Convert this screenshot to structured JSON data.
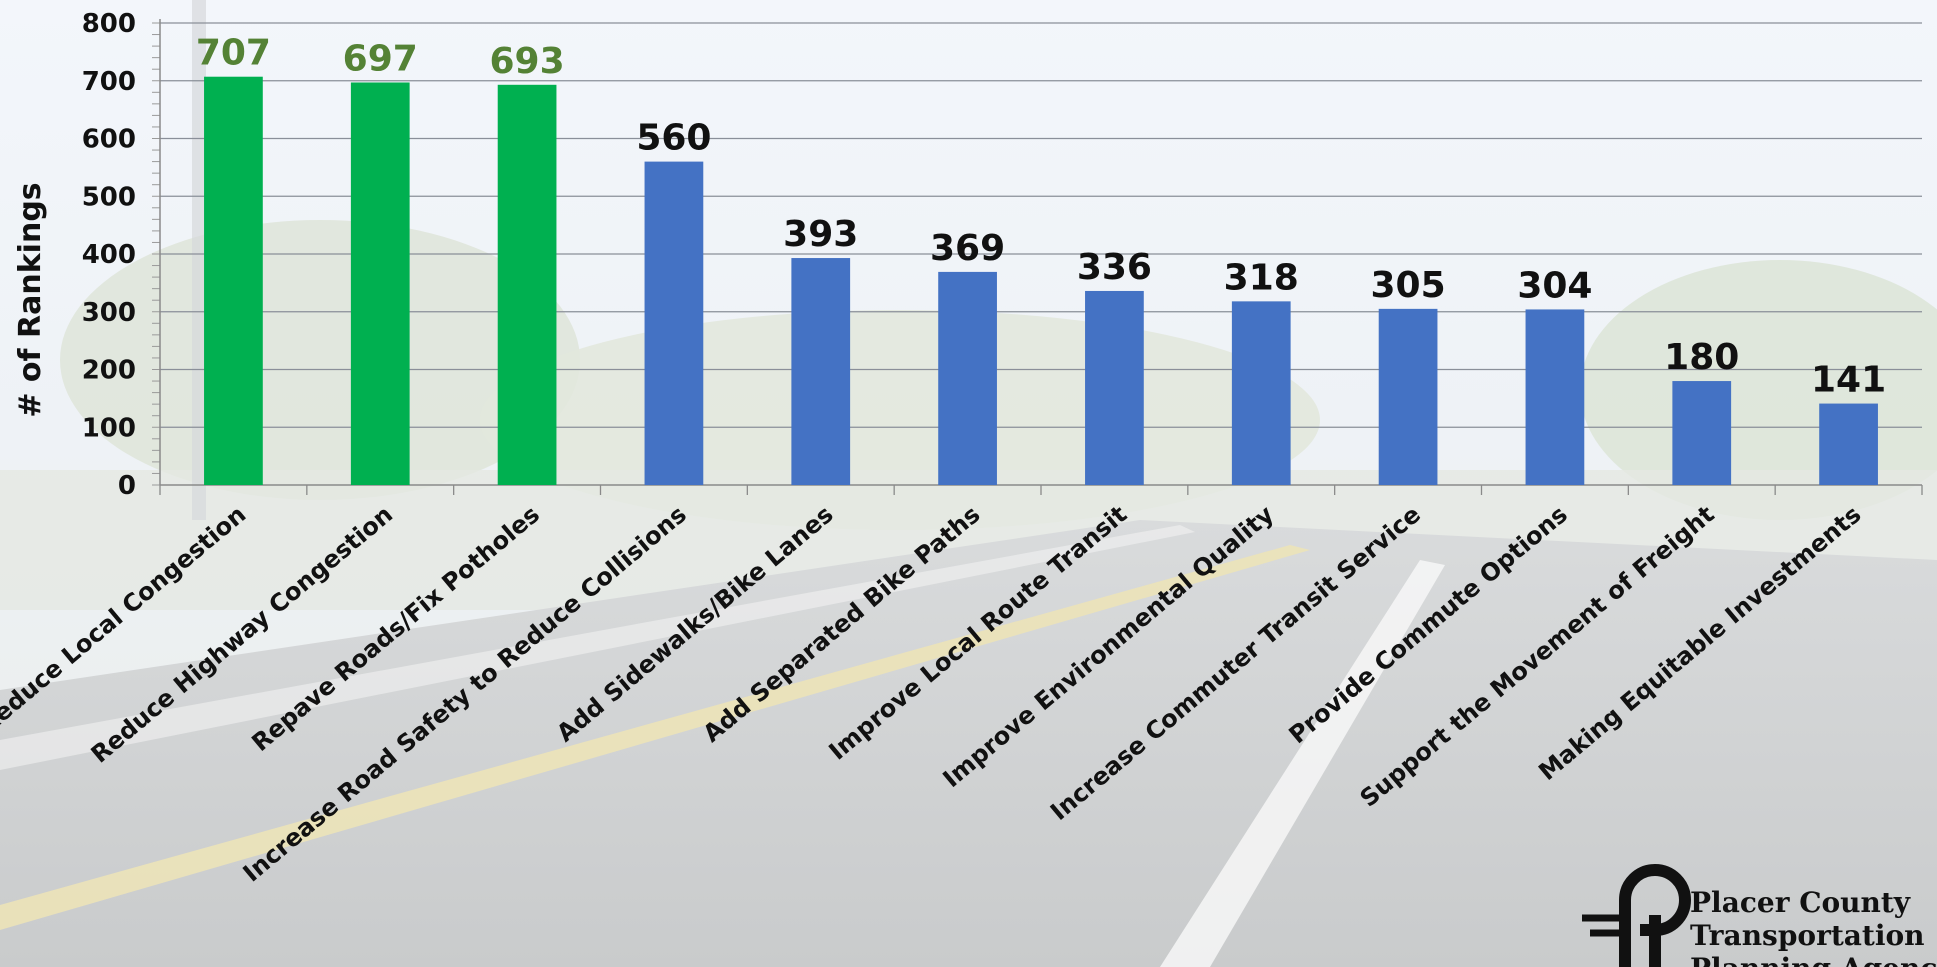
{
  "chart_data": {
    "type": "bar",
    "title": "",
    "xlabel": "",
    "ylabel": "# of Rankings",
    "ylim": [
      0,
      800
    ],
    "yticks": [
      0,
      100,
      200,
      300,
      400,
      500,
      600,
      700,
      800
    ],
    "grid": true,
    "categories": [
      "Reduce Local Congestion",
      "Reduce Highway Congestion",
      "Repave Roads/Fix Potholes",
      "Increase Road Safety to Reduce Collisions",
      "Add Sidewalks/Bike Lanes",
      "Add Separated Bike Paths",
      "Improve Local Route Transit",
      "Improve Environmental Quality",
      "Increase Commuter Transit Service",
      "Provide Commute Options",
      "Support the Movement of Freight",
      "Making Equitable Investments"
    ],
    "values": [
      707,
      697,
      693,
      560,
      393,
      369,
      336,
      318,
      305,
      304,
      180,
      141
    ],
    "highlighted_top_n": 3,
    "colors": {
      "highlight_bar": "#00b050",
      "highlight_label": "#548235",
      "default_bar": "#4472c4",
      "default_label": "#111111",
      "grid": "#8a8f99"
    }
  },
  "logo": {
    "lines": [
      "Placer County",
      "Transportation",
      "Planning Agency"
    ]
  }
}
